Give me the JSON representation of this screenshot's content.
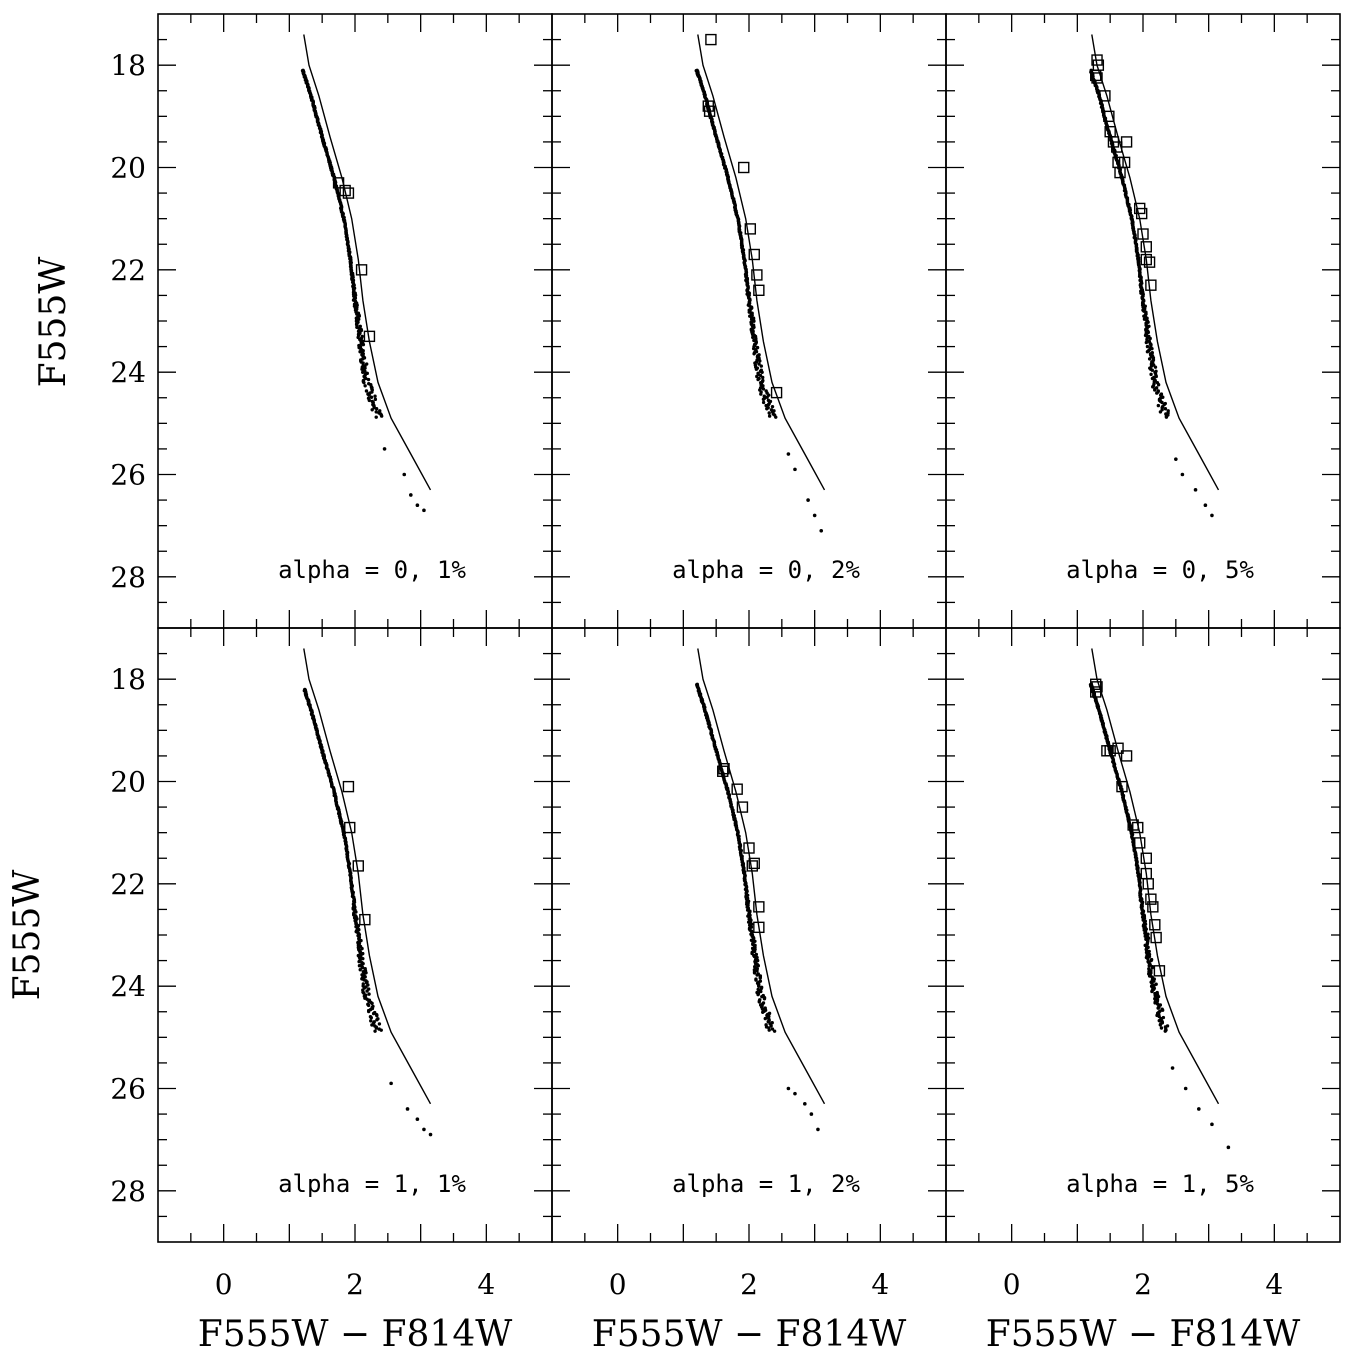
{
  "chart_data": {
    "type": "scatter",
    "xlabel": "F555W − F814W",
    "ylabel": "F555W",
    "xlim": [
      -1,
      5
    ],
    "ylim": [
      29,
      17
    ],
    "xticks": [
      0,
      2,
      4
    ],
    "yticks": [
      18,
      20,
      22,
      24,
      26,
      28
    ],
    "grid": false,
    "layout": "2x3 panels, shared axes",
    "isochrone": [
      [
        1.22,
        17.4
      ],
      [
        1.3,
        18.0
      ],
      [
        1.45,
        18.6
      ],
      [
        1.62,
        19.4
      ],
      [
        1.8,
        20.2
      ],
      [
        1.95,
        21.0
      ],
      [
        2.05,
        21.8
      ],
      [
        2.12,
        22.6
      ],
      [
        2.22,
        23.4
      ],
      [
        2.35,
        24.2
      ],
      [
        2.55,
        24.9
      ],
      [
        2.85,
        25.6
      ],
      [
        3.15,
        26.3
      ]
    ],
    "panels": [
      {
        "label": "alpha = 0, 1%",
        "squares": [
          [
            1.75,
            20.3
          ],
          [
            1.85,
            20.45
          ],
          [
            1.9,
            20.5
          ],
          [
            2.1,
            22.0
          ],
          [
            2.22,
            23.3
          ]
        ],
        "dots_end": [
          [
            2.45,
            25.5
          ],
          [
            2.75,
            26.0
          ],
          [
            2.85,
            26.4
          ],
          [
            2.95,
            26.6
          ],
          [
            3.05,
            26.7
          ]
        ]
      },
      {
        "label": "alpha = 0, 2%",
        "squares": [
          [
            1.42,
            17.5
          ],
          [
            1.38,
            18.8
          ],
          [
            1.4,
            18.9
          ],
          [
            1.92,
            20.0
          ],
          [
            2.02,
            21.2
          ],
          [
            2.08,
            21.7
          ],
          [
            2.12,
            22.1
          ],
          [
            2.15,
            22.4
          ],
          [
            2.42,
            24.4
          ]
        ],
        "dots_end": [
          [
            2.6,
            25.6
          ],
          [
            2.7,
            25.9
          ],
          [
            2.9,
            26.5
          ],
          [
            3.0,
            26.8
          ],
          [
            3.1,
            27.1
          ]
        ]
      },
      {
        "label": "alpha = 0, 5%",
        "squares": [
          [
            1.3,
            17.9
          ],
          [
            1.32,
            18.0
          ],
          [
            1.28,
            18.2
          ],
          [
            1.3,
            18.25
          ],
          [
            1.42,
            18.6
          ],
          [
            1.48,
            19.0
          ],
          [
            1.5,
            19.3
          ],
          [
            1.55,
            19.5
          ],
          [
            1.6,
            19.6
          ],
          [
            1.62,
            19.9
          ],
          [
            1.75,
            19.5
          ],
          [
            1.72,
            19.9
          ],
          [
            1.65,
            20.1
          ],
          [
            1.95,
            20.8
          ],
          [
            1.98,
            20.9
          ],
          [
            2.0,
            21.3
          ],
          [
            2.05,
            21.55
          ],
          [
            2.05,
            21.8
          ],
          [
            2.1,
            21.85
          ],
          [
            2.12,
            22.3
          ]
        ],
        "dots_end": [
          [
            2.5,
            25.7
          ],
          [
            2.6,
            26.0
          ],
          [
            2.8,
            26.3
          ],
          [
            2.95,
            26.6
          ],
          [
            3.05,
            26.8
          ]
        ]
      },
      {
        "label": "alpha = 1, 1%",
        "squares": [
          [
            1.9,
            20.1
          ],
          [
            1.92,
            20.9
          ],
          [
            2.05,
            21.65
          ],
          [
            2.15,
            22.7
          ]
        ],
        "dots_end": [
          [
            2.55,
            25.9
          ],
          [
            2.8,
            26.4
          ],
          [
            2.95,
            26.6
          ],
          [
            3.05,
            26.8
          ],
          [
            3.15,
            26.9
          ]
        ]
      },
      {
        "label": "alpha = 1, 2%",
        "squares": [
          [
            1.62,
            19.75
          ],
          [
            1.6,
            19.8
          ],
          [
            1.82,
            20.15
          ],
          [
            1.9,
            20.5
          ],
          [
            2.0,
            21.3
          ],
          [
            2.05,
            21.65
          ],
          [
            2.08,
            21.6
          ],
          [
            2.15,
            22.45
          ],
          [
            2.15,
            22.85
          ]
        ],
        "dots_end": [
          [
            2.6,
            26.0
          ],
          [
            2.7,
            26.1
          ],
          [
            2.85,
            26.3
          ],
          [
            2.95,
            26.5
          ],
          [
            3.05,
            26.8
          ]
        ]
      },
      {
        "label": "alpha = 1, 5%",
        "squares": [
          [
            1.28,
            18.1
          ],
          [
            1.3,
            18.15
          ],
          [
            1.28,
            18.25
          ],
          [
            1.45,
            19.4
          ],
          [
            1.5,
            19.4
          ],
          [
            1.62,
            19.35
          ],
          [
            1.75,
            19.5
          ],
          [
            1.68,
            20.1
          ],
          [
            1.85,
            20.85
          ],
          [
            1.92,
            20.9
          ],
          [
            1.95,
            21.2
          ],
          [
            2.05,
            21.5
          ],
          [
            2.05,
            21.8
          ],
          [
            2.08,
            22.0
          ],
          [
            2.12,
            22.3
          ],
          [
            2.15,
            22.45
          ],
          [
            2.18,
            22.8
          ],
          [
            2.2,
            23.05
          ],
          [
            2.25,
            23.7
          ]
        ],
        "dots_end": [
          [
            2.45,
            25.6
          ],
          [
            2.65,
            26.0
          ],
          [
            2.85,
            26.4
          ],
          [
            3.05,
            26.7
          ],
          [
            3.3,
            27.15
          ]
        ]
      }
    ]
  }
}
